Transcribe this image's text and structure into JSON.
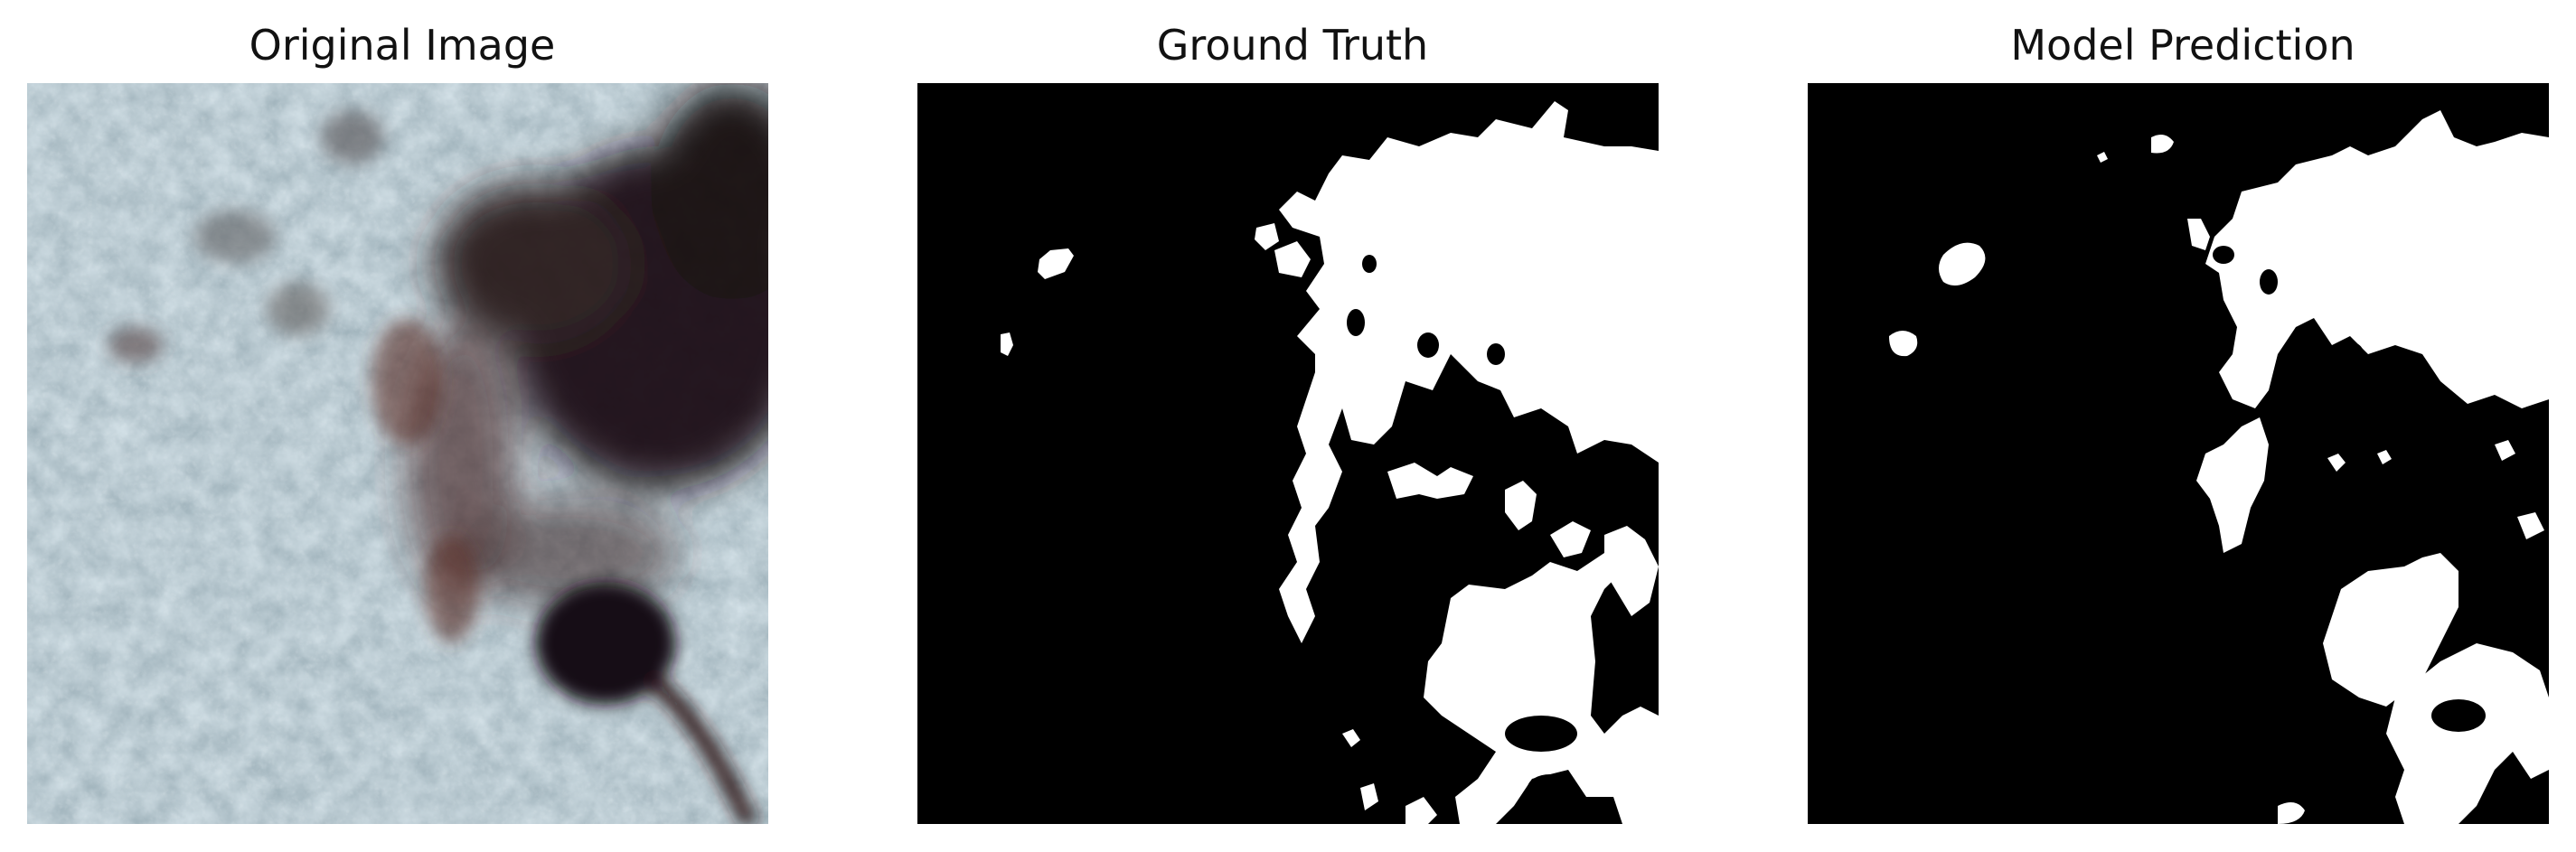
{
  "panels": [
    {
      "title": "Original Image",
      "image_icon": "micrograph-image"
    },
    {
      "title": "Ground Truth",
      "image_icon": "binary-mask-image"
    },
    {
      "title": "Model Prediction",
      "image_icon": "binary-mask-image"
    }
  ],
  "colors": {
    "background": "#ffffff",
    "mask_background": "#000000",
    "mask_foreground": "#ffffff",
    "micrograph_base": "#7f97a3",
    "micrograph_dark": "#1a1014",
    "micrograph_rust": "#5a2a24"
  }
}
